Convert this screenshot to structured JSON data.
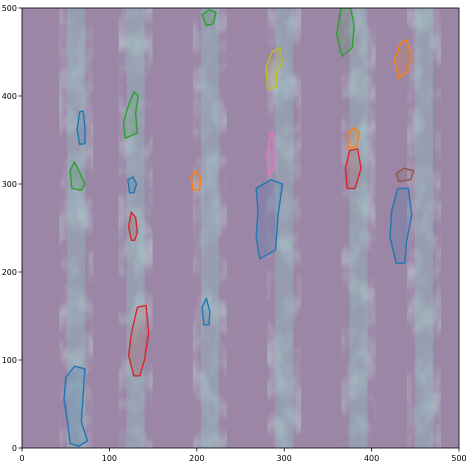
{
  "chart_data": {
    "type": "heatmap",
    "title": "",
    "xlabel": "",
    "ylabel": "",
    "xlim": [
      0,
      500
    ],
    "ylim": [
      0,
      500
    ],
    "x_ticks": [
      0,
      100,
      200,
      300,
      400,
      500
    ],
    "y_ticks": [
      0,
      100,
      200,
      300,
      400,
      500
    ],
    "x_tick_labels": [
      "0",
      "100",
      "200",
      "300",
      "400",
      "500"
    ],
    "y_tick_labels": [
      "0",
      "100",
      "200",
      "300",
      "400",
      "500"
    ],
    "grid": false,
    "background_color": "#9b86a6",
    "crop_row_color": "#8fc6c0",
    "crop_rows_x": [
      62,
      130,
      215,
      300,
      385,
      460
    ],
    "instance_outlines": [
      {
        "color": "#1f77b4",
        "points": [
          [
            55,
            5
          ],
          [
            52,
            30
          ],
          [
            48,
            55
          ],
          [
            50,
            80
          ],
          [
            60,
            93
          ],
          [
            72,
            90
          ],
          [
            70,
            60
          ],
          [
            68,
            30
          ],
          [
            75,
            8
          ],
          [
            65,
            2
          ]
        ]
      },
      {
        "color": "#d62728",
        "points": [
          [
            128,
            82
          ],
          [
            122,
            105
          ],
          [
            125,
            130
          ],
          [
            132,
            160
          ],
          [
            142,
            162
          ],
          [
            145,
            130
          ],
          [
            140,
            100
          ],
          [
            135,
            82
          ]
        ]
      },
      {
        "color": "#2ca02c",
        "points": [
          [
            57,
            295
          ],
          [
            55,
            315
          ],
          [
            60,
            325
          ],
          [
            65,
            315
          ],
          [
            72,
            300
          ],
          [
            68,
            293
          ]
        ]
      },
      {
        "color": "#1f77b4",
        "points": [
          [
            66,
            345
          ],
          [
            63,
            362
          ],
          [
            66,
            382
          ],
          [
            70,
            383
          ],
          [
            72,
            365
          ],
          [
            72,
            346
          ]
        ]
      },
      {
        "color": "#2ca02c",
        "points": [
          [
            118,
            352
          ],
          [
            116,
            370
          ],
          [
            122,
            390
          ],
          [
            128,
            405
          ],
          [
            133,
            400
          ],
          [
            130,
            380
          ],
          [
            132,
            358
          ]
        ]
      },
      {
        "color": "#d62728",
        "points": [
          [
            125,
            236
          ],
          [
            122,
            252
          ],
          [
            125,
            268
          ],
          [
            130,
            262
          ],
          [
            132,
            245
          ],
          [
            129,
            236
          ]
        ]
      },
      {
        "color": "#1f77b4",
        "points": [
          [
            123,
            290
          ],
          [
            121,
            305
          ],
          [
            127,
            308
          ],
          [
            131,
            300
          ],
          [
            128,
            290
          ]
        ]
      },
      {
        "color": "#ff7f0e",
        "points": [
          [
            196,
            293
          ],
          [
            193,
            308
          ],
          [
            198,
            315
          ],
          [
            205,
            308
          ],
          [
            203,
            293
          ]
        ]
      },
      {
        "color": "#1f77b4",
        "points": [
          [
            208,
            140
          ],
          [
            206,
            160
          ],
          [
            211,
            170
          ],
          [
            215,
            155
          ],
          [
            214,
            140
          ]
        ]
      },
      {
        "color": "#2ca02c",
        "points": [
          [
            211,
            480
          ],
          [
            206,
            492
          ],
          [
            214,
            498
          ],
          [
            222,
            495
          ],
          [
            219,
            482
          ]
        ]
      },
      {
        "color": "#1f77b4",
        "points": [
          [
            272,
            215
          ],
          [
            268,
            240
          ],
          [
            270,
            270
          ],
          [
            268,
            295
          ],
          [
            285,
            305
          ],
          [
            298,
            300
          ],
          [
            293,
            265
          ],
          [
            290,
            225
          ]
        ]
      },
      {
        "color": "#e377c2",
        "points": [
          [
            283,
            310
          ],
          [
            280,
            330
          ],
          [
            285,
            360
          ],
          [
            290,
            350
          ],
          [
            289,
            320
          ]
        ]
      },
      {
        "color": "#bcbd22",
        "points": [
          [
            281,
            408
          ],
          [
            279,
            432
          ],
          [
            286,
            450
          ],
          [
            295,
            455
          ],
          [
            298,
            440
          ],
          [
            291,
            425
          ],
          [
            292,
            410
          ]
        ]
      },
      {
        "color": "#d62728",
        "points": [
          [
            372,
            295
          ],
          [
            370,
            318
          ],
          [
            375,
            338
          ],
          [
            384,
            340
          ],
          [
            388,
            318
          ],
          [
            381,
            295
          ]
        ]
      },
      {
        "color": "#ff7f0e",
        "points": [
          [
            374,
            340
          ],
          [
            372,
            355
          ],
          [
            379,
            364
          ],
          [
            386,
            358
          ],
          [
            383,
            343
          ]
        ]
      },
      {
        "color": "#2ca02c",
        "points": [
          [
            366,
            445
          ],
          [
            360,
            470
          ],
          [
            365,
            500
          ],
          [
            376,
            500
          ],
          [
            380,
            480
          ],
          [
            378,
            455
          ]
        ]
      },
      {
        "color": "#ff7f0e",
        "points": [
          [
            431,
            420
          ],
          [
            426,
            440
          ],
          [
            433,
            460
          ],
          [
            440,
            464
          ],
          [
            446,
            445
          ],
          [
            441,
            428
          ]
        ]
      },
      {
        "color": "#1f77b4",
        "points": [
          [
            428,
            210
          ],
          [
            421,
            240
          ],
          [
            423,
            270
          ],
          [
            430,
            295
          ],
          [
            442,
            295
          ],
          [
            446,
            265
          ],
          [
            440,
            235
          ],
          [
            438,
            210
          ]
        ]
      },
      {
        "color": "#8c564b",
        "points": [
          [
            431,
            303
          ],
          [
            428,
            312
          ],
          [
            437,
            318
          ],
          [
            448,
            315
          ],
          [
            445,
            305
          ]
        ]
      }
    ]
  }
}
